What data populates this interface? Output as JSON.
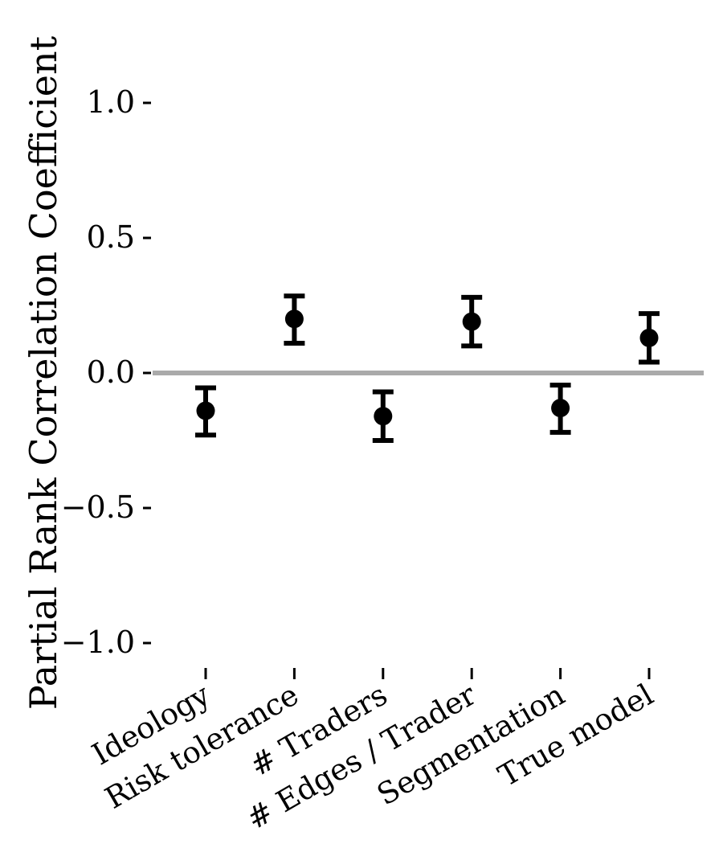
{
  "chart_data": {
    "type": "scatter",
    "title": "",
    "xlabel": "",
    "ylabel": "Partial Rank Correlation Coefficient",
    "ylim": [
      -1.15,
      1.2
    ],
    "yticks": [
      1.0,
      0.5,
      0.0,
      -0.5,
      -1.0
    ],
    "ytick_labels": [
      "1.0",
      "0.5",
      "0.0",
      "−0.5",
      "−1.0"
    ],
    "categories": [
      "Ideology",
      "Risk tolerance",
      "# Traders",
      "# Edges / Trader",
      "Segmentation",
      "True model"
    ],
    "series": [
      {
        "values": [
          -0.14,
          0.2,
          -0.16,
          0.19,
          -0.13,
          0.13
        ],
        "lower": [
          -0.23,
          0.11,
          -0.25,
          0.1,
          -0.22,
          0.04
        ],
        "upper": [
          -0.055,
          0.285,
          -0.07,
          0.28,
          -0.045,
          0.22
        ]
      }
    ],
    "reference_line": 0.0,
    "grid": false,
    "colors": {
      "points": "#000000",
      "reference_line": "#aaaaaa",
      "axis": "#000000"
    }
  }
}
